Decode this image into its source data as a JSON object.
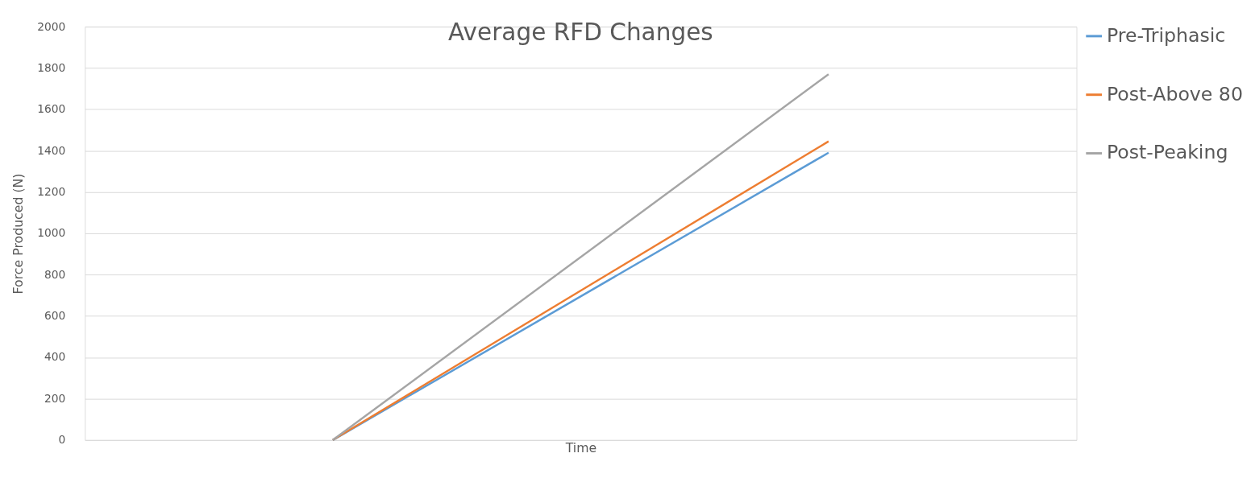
{
  "chart_data": {
    "type": "line",
    "title": "Average RFD Changes",
    "xlabel": "Time",
    "ylabel": "Force Produced (N)",
    "categories": [
      null,
      null
    ],
    "series": [
      {
        "name": "Pre-Triphasic",
        "color": "#5b9bd5",
        "values": [
          0,
          1390
        ]
      },
      {
        "name": "Post-Above 80",
        "color": "#ed7d31",
        "values": [
          0,
          1445
        ]
      },
      {
        "name": "Post-Peaking",
        "color": "#a5a5a5",
        "values": [
          0,
          1770
        ]
      }
    ],
    "ylim": [
      0,
      2000
    ],
    "yticks": [
      0,
      200,
      400,
      600,
      800,
      1000,
      1200,
      1400,
      1600,
      1800,
      2000
    ],
    "grid": "y",
    "legend": "right",
    "marker": "none",
    "line_style": "solid"
  }
}
